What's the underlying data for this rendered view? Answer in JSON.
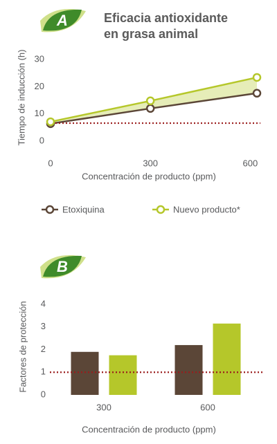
{
  "chart_data": [
    {
      "type": "line",
      "badge": "A",
      "title": [
        "Eficacia antioxidante",
        "en grasa animal"
      ],
      "y_label": "Tiempo de inducción (h)",
      "x_label": "Concentración de producto (ppm)",
      "xlim": [
        0,
        620
      ],
      "xticks": [
        0,
        300,
        600
      ],
      "ylim": [
        0,
        30
      ],
      "yticks": [
        0,
        10,
        20,
        30
      ],
      "reference_line": 6.6,
      "reference_color": "#9b1c1c",
      "series": [
        {
          "name": "Etoxiquina",
          "color": "#5b4637",
          "x": [
            0,
            300,
            620
          ],
          "values": [
            6.4,
            12,
            17.6
          ]
        },
        {
          "name": "Nuevo producto*",
          "color": "#b5c72a",
          "x": [
            0,
            300,
            620
          ],
          "values": [
            7.1,
            14.8,
            23.4
          ]
        }
      ]
    },
    {
      "type": "bar",
      "badge": "B",
      "y_label": "Factores de protección",
      "x_label": "Concentración de producto (ppm)",
      "categories": [
        "300",
        "600"
      ],
      "ylim": [
        0,
        4
      ],
      "yticks": [
        0,
        1,
        2,
        3,
        4
      ],
      "reference_line": 1,
      "reference_color": "#9b1c1c",
      "series": [
        {
          "color": "#5b4637",
          "values": [
            1.9,
            2.2
          ]
        },
        {
          "color": "#b5c72a",
          "values": [
            1.75,
            3.15
          ]
        }
      ]
    }
  ]
}
